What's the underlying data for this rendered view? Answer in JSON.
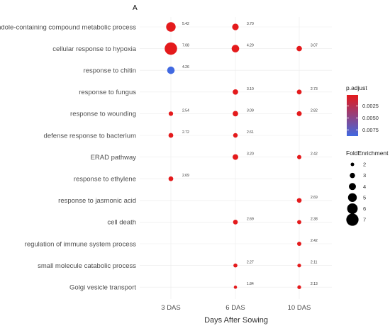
{
  "panel_label": "A",
  "chart_data": {
    "type": "scatter",
    "xlabel": "Days After Sowing",
    "ylabel": "",
    "x_categories": [
      "3 DAS",
      "6 DAS",
      "10 DAS"
    ],
    "terms": [
      "indole-containing compound metabolic process",
      "cellular response to hypoxia",
      "response to chitin",
      "response to fungus",
      "response to wounding",
      "defense response to bacterium",
      "ERAD pathway",
      "response to ethylene",
      "response to jasmonic acid",
      "cell death",
      "regulation of immune system process",
      "small molecule catabolic process",
      "Golgi vesicle transport"
    ],
    "points": [
      {
        "term": "indole-containing compound metabolic process",
        "x": "3 DAS",
        "fold_enrichment": 5.42,
        "label": "5.42",
        "p_adjust": 0.0002
      },
      {
        "term": "indole-containing compound metabolic process",
        "x": "6 DAS",
        "fold_enrichment": 3.7,
        "label": "3.70",
        "p_adjust": 0.0002
      },
      {
        "term": "cellular response to hypoxia",
        "x": "3 DAS",
        "fold_enrichment": 7.08,
        "label": "7.08",
        "p_adjust": 0.0002
      },
      {
        "term": "cellular response to hypoxia",
        "x": "6 DAS",
        "fold_enrichment": 4.29,
        "label": "4.29",
        "p_adjust": 0.0002
      },
      {
        "term": "cellular response to hypoxia",
        "x": "10 DAS",
        "fold_enrichment": 3.07,
        "label": "3.07",
        "p_adjust": 0.0002
      },
      {
        "term": "response to chitin",
        "x": "3 DAS",
        "fold_enrichment": 4.26,
        "label": "4.26",
        "p_adjust": 0.0088
      },
      {
        "term": "response to fungus",
        "x": "6 DAS",
        "fold_enrichment": 3.1,
        "label": "3.10",
        "p_adjust": 0.0002
      },
      {
        "term": "response to fungus",
        "x": "10 DAS",
        "fold_enrichment": 2.73,
        "label": "2.73",
        "p_adjust": 0.0002
      },
      {
        "term": "response to wounding",
        "x": "3 DAS",
        "fold_enrichment": 2.54,
        "label": "2.54",
        "p_adjust": 0.0002
      },
      {
        "term": "response to wounding",
        "x": "6 DAS",
        "fold_enrichment": 3.09,
        "label": "3.09",
        "p_adjust": 0.0002
      },
      {
        "term": "response to wounding",
        "x": "10 DAS",
        "fold_enrichment": 2.82,
        "label": "2.82",
        "p_adjust": 0.0002
      },
      {
        "term": "defense response to bacterium",
        "x": "3 DAS",
        "fold_enrichment": 2.72,
        "label": "2.72",
        "p_adjust": 0.0002
      },
      {
        "term": "defense response to bacterium",
        "x": "6 DAS",
        "fold_enrichment": 2.61,
        "label": "2.61",
        "p_adjust": 0.0002
      },
      {
        "term": "ERAD pathway",
        "x": "6 DAS",
        "fold_enrichment": 3.2,
        "label": "3.20",
        "p_adjust": 0.0002
      },
      {
        "term": "ERAD pathway",
        "x": "10 DAS",
        "fold_enrichment": 2.42,
        "label": "2.42",
        "p_adjust": 0.0002
      },
      {
        "term": "response to ethylene",
        "x": "3 DAS",
        "fold_enrichment": 2.69,
        "label": "2.69",
        "p_adjust": 0.0002
      },
      {
        "term": "response to jasmonic acid",
        "x": "10 DAS",
        "fold_enrichment": 2.69,
        "label": "2.69",
        "p_adjust": 0.0002
      },
      {
        "term": "cell death",
        "x": "6 DAS",
        "fold_enrichment": 2.69,
        "label": "2.69",
        "p_adjust": 0.0002
      },
      {
        "term": "cell death",
        "x": "10 DAS",
        "fold_enrichment": 2.38,
        "label": "2.38",
        "p_adjust": 0.0002
      },
      {
        "term": "regulation of immune system process",
        "x": "10 DAS",
        "fold_enrichment": 2.42,
        "label": "2.42",
        "p_adjust": 0.0002
      },
      {
        "term": "small molecule catabolic process",
        "x": "6 DAS",
        "fold_enrichment": 2.27,
        "label": "2.27",
        "p_adjust": 0.0002
      },
      {
        "term": "small molecule catabolic process",
        "x": "10 DAS",
        "fold_enrichment": 2.11,
        "label": "2.11",
        "p_adjust": 0.0002
      },
      {
        "term": "Golgi vesicle transport",
        "x": "6 DAS",
        "fold_enrichment": 1.84,
        "label": "1.84",
        "p_adjust": 0.0002
      },
      {
        "term": "Golgi vesicle transport",
        "x": "10 DAS",
        "fold_enrichment": 2.13,
        "label": "2.13",
        "p_adjust": 0.0002
      }
    ],
    "color_legend": {
      "title": "p.adjust",
      "ticks": [
        0.0025,
        0.005,
        0.0075
      ],
      "tick_labels": [
        "0.0025",
        "0.0050",
        "0.0075"
      ],
      "range": [
        0.0002,
        0.0088
      ],
      "low_color": "#e41a1c",
      "high_color": "#4169e1"
    },
    "size_legend": {
      "title": "FoldEnrichment",
      "values": [
        2,
        3,
        4,
        5,
        6,
        7
      ],
      "labels": [
        "2",
        "3",
        "4",
        "5",
        "6",
        "7"
      ]
    },
    "grid": true,
    "legend_position": "right"
  }
}
